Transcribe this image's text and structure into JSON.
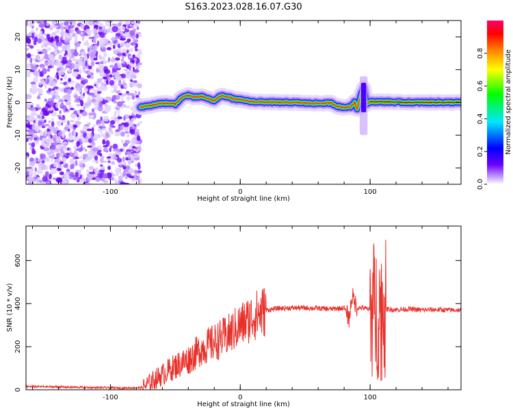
{
  "title": "S163.2023.028.16.07.G30",
  "chart_data": [
    {
      "type": "heatmap",
      "xlabel": "Height of straight line (km)",
      "ylabel": "Frequency (Hz)",
      "xlim": [
        -165,
        170
      ],
      "ylim": [
        -25,
        25
      ],
      "xticks": [
        -100,
        0,
        100
      ],
      "yticks": [
        -20,
        -10,
        0,
        10,
        20
      ],
      "colorbar": {
        "label": "Normalized spectral amplitude",
        "range": [
          0,
          1
        ],
        "ticks": [
          0.0,
          0.2,
          0.4,
          0.6,
          0.8
        ],
        "colormap": [
          "#6a00ff",
          "#0000ff",
          "#00e6ff",
          "#00ff00",
          "#ffff00",
          "#ff8000",
          "#ff0000",
          "#ff0066"
        ]
      },
      "noise_region_x": [
        -165,
        -77
      ],
      "ridge": {
        "x": [
          -77,
          -70,
          -60,
          -50,
          -45,
          -40,
          -35,
          -30,
          -25,
          -20,
          -15,
          -10,
          -5,
          0,
          10,
          20,
          30,
          40,
          50,
          60,
          70,
          75,
          80,
          85,
          88,
          90,
          93,
          95,
          97,
          100,
          110,
          120,
          130,
          140,
          150,
          160,
          170
        ],
        "y": [
          -1.5,
          -1.0,
          -0.2,
          -0.5,
          1.5,
          2.2,
          1.5,
          1.8,
          1.2,
          0.5,
          2.0,
          1.8,
          1.0,
          0.8,
          0.2,
          0.1,
          0.0,
          0.0,
          -0.2,
          -0.3,
          -0.2,
          -1.2,
          -1.5,
          -1.4,
          0.0,
          -2.0,
          2.5,
          4.5,
          -0.5,
          0.2,
          0.2,
          0.1,
          0.0,
          0.0,
          0.0,
          0.0,
          0.0
        ]
      }
    },
    {
      "type": "line",
      "xlabel": "Height of straight line (km)",
      "ylabel": "SNR (10 * v/v)",
      "xlim": [
        -165,
        170
      ],
      "ylim": [
        0,
        760
      ],
      "xticks": [
        -100,
        0,
        100
      ],
      "yticks": [
        0,
        200,
        400,
        600
      ],
      "color": "#e8302a",
      "series": [
        {
          "x": [
            -165,
            -150,
            -130,
            -110,
            -90,
            -75,
            -68,
            -60,
            -50,
            -40,
            -30,
            -20,
            -10,
            0,
            10,
            20,
            30,
            40,
            50,
            60,
            70,
            80,
            84,
            86,
            90,
            95,
            100,
            103,
            105,
            107,
            109,
            112,
            120,
            130,
            140,
            150,
            160,
            170
          ],
          "y": [
            15,
            14,
            12,
            10,
            8,
            10,
            40,
            70,
            110,
            140,
            190,
            220,
            250,
            300,
            340,
            370,
            378,
            380,
            380,
            378,
            375,
            380,
            330,
            440,
            380,
            380,
            370,
            700,
            120,
            740,
            80,
            375,
            372,
            374,
            370,
            372,
            370,
            370
          ]
        }
      ]
    }
  ]
}
